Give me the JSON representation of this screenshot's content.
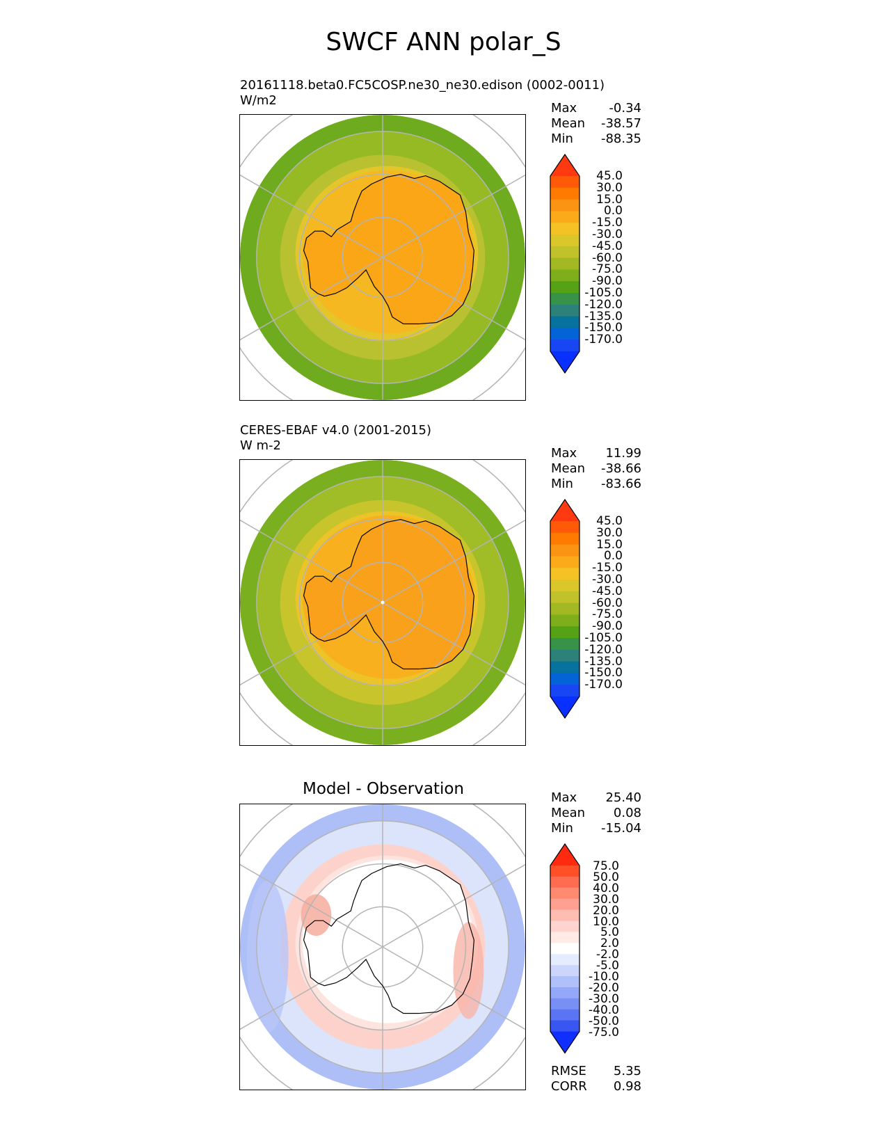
{
  "title": "SWCF ANN polar_S",
  "panels": [
    {
      "id": "test",
      "title_line1": "20161118.beta0.FC5COSP.ne30_ne30.edison (0002-0011)",
      "title_line2": "W/m2",
      "stats": [
        {
          "label": "Max",
          "value": "-0.34"
        },
        {
          "label": "Mean",
          "value": "-38.57"
        },
        {
          "label": "Min",
          "value": "-88.35"
        }
      ],
      "colorbar_labels": [
        "45.0",
        "30.0",
        "15.0",
        "0.0",
        "-15.0",
        "-30.0",
        "-45.0",
        "-60.0",
        "-75.0",
        "-90.0",
        "-105.0",
        "-120.0",
        "-135.0",
        "-150.0",
        "-170.0"
      ],
      "colorbar_colors": [
        "#ff3a10",
        "#ff5a08",
        "#ff7a00",
        "#fb9313",
        "#fbaa1a",
        "#f4c224",
        "#dcc72a",
        "#c1c12c",
        "#a3b923",
        "#7eae1a",
        "#55a217",
        "#379348",
        "#2c8278",
        "#08729e",
        "#0563d8",
        "#1946f5",
        "#0a30ff"
      ],
      "map_colors": {
        "edge": "#6fab1f",
        "outer": "#96ba24",
        "mid": "#b9c130",
        "inner": "#e5c62a",
        "coast": "#f6b820",
        "land": "#fba617"
      }
    },
    {
      "id": "reference",
      "title_line1": "CERES-EBAF v4.0 (2001-2015)",
      "title_line2": "W m-2",
      "stats": [
        {
          "label": "Max",
          "value": "11.99"
        },
        {
          "label": "Mean",
          "value": "-38.66"
        },
        {
          "label": "Min",
          "value": "-83.66"
        }
      ],
      "colorbar_labels": [
        "45.0",
        "30.0",
        "15.0",
        "0.0",
        "-15.0",
        "-30.0",
        "-45.0",
        "-60.0",
        "-75.0",
        "-90.0",
        "-105.0",
        "-120.0",
        "-135.0",
        "-150.0",
        "-170.0"
      ],
      "colorbar_colors": [
        "#ff3a10",
        "#ff5a08",
        "#ff7a00",
        "#fb9313",
        "#fbaa1a",
        "#f4c224",
        "#dcc72a",
        "#c1c12c",
        "#a3b923",
        "#7eae1a",
        "#55a217",
        "#379348",
        "#2c8278",
        "#08729e",
        "#0563d8",
        "#1946f5",
        "#0a30ff"
      ],
      "map_colors": {
        "edge": "#7ab01f",
        "outer": "#a0bc26",
        "mid": "#c8c42c",
        "inner": "#ecc427",
        "coast": "#f8b01e",
        "land": "#f9a11a"
      }
    },
    {
      "id": "diff",
      "title": "Model - Observation",
      "stats": [
        {
          "label": "Max",
          "value": "25.40"
        },
        {
          "label": "Mean",
          "value": "0.08"
        },
        {
          "label": "Min",
          "value": "-15.04"
        }
      ],
      "colorbar_labels": [
        "75.0",
        "50.0",
        "40.0",
        "30.0",
        "20.0",
        "10.0",
        "5.0",
        "2.0",
        "-2.0",
        "-5.0",
        "-10.0",
        "-20.0",
        "-30.0",
        "-40.0",
        "-50.0",
        "-75.0"
      ],
      "colorbar_colors": [
        "#ff2a10",
        "#ff5028",
        "#ff6c50",
        "#ff8a70",
        "#ffa090",
        "#ffbcb0",
        "#ffd4ce",
        "#ffeae6",
        "#ffffff",
        "#e6ecff",
        "#ccd6fc",
        "#b0c0fa",
        "#93a8f8",
        "#7890f6",
        "#5a74f4",
        "#3a56f2",
        "#1030ff"
      ],
      "map_colors": {
        "edge": "#aebff8",
        "outer": "#dce4fc",
        "mid": "#fcd2ca",
        "inner": "#fde4de",
        "coast": "#ffffff",
        "land": "#ffffff"
      },
      "extra_stats": [
        {
          "label": "RMSE",
          "value": "5.35"
        },
        {
          "label": "CORR",
          "value": "0.98"
        }
      ]
    }
  ]
}
